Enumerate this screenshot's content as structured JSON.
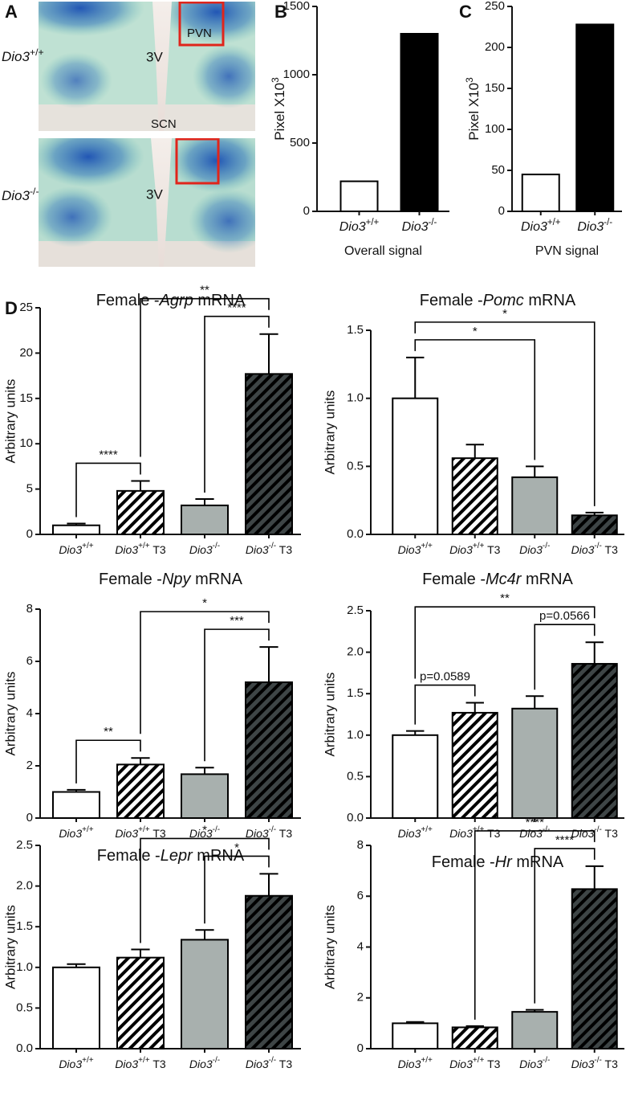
{
  "image_panel": {
    "panel": "A",
    "top": {
      "genotype": "Dio3+/+",
      "region_box": "PVN",
      "ventricle": "3V",
      "nucleus": "SCN"
    },
    "bottom": {
      "genotype": "Dio3-/-",
      "ventricle": "3V"
    }
  },
  "chart_data": [
    {
      "type": "bar",
      "panel": "B",
      "ylabel": "Pixel X103",
      "xlabel": "Overall signal",
      "categories": [
        "Dio3+/+",
        "Dio3-/-"
      ],
      "values": [
        220,
        1300
      ],
      "colors": [
        "#ffffff",
        "#000000"
      ],
      "hatch": [
        false,
        false
      ],
      "ylim": [
        0,
        1500
      ],
      "yticks": [
        0,
        500,
        1000,
        1500
      ]
    },
    {
      "type": "bar",
      "panel": "C",
      "ylabel": "Pixel X103",
      "xlabel": "PVN signal",
      "categories": [
        "Dio3+/+",
        "Dio3-/-"
      ],
      "values": [
        45,
        228
      ],
      "colors": [
        "#ffffff",
        "#000000"
      ],
      "hatch": [
        false,
        false
      ],
      "ylim": [
        0,
        250
      ],
      "yticks": [
        0,
        50,
        100,
        150,
        200,
        250
      ]
    },
    {
      "type": "bar",
      "panel": "D",
      "title": "Female -Agrp mRNA",
      "ylabel": "Arbitrary units",
      "categories": [
        "Dio3+/+",
        "Dio3+/+ T3",
        "Dio3-/-",
        "Dio3-/- T3"
      ],
      "values": [
        1.0,
        4.8,
        3.2,
        17.7
      ],
      "errors": [
        0.2,
        1.1,
        0.7,
        4.4
      ],
      "colors": [
        "#ffffff",
        "#ffffff",
        "#a8b0ae",
        "#3e4546"
      ],
      "hatch": [
        false,
        true,
        false,
        true
      ],
      "ylim": [
        0,
        25
      ],
      "yticks": [
        0,
        5,
        10,
        15,
        20,
        25
      ],
      "annotations": [
        {
          "text": "****",
          "from": "Dio3+/+",
          "to": "Dio3+/+ T3"
        },
        {
          "text": "****",
          "from": "Dio3-/-",
          "to": "Dio3-/- T3"
        },
        {
          "text": "**",
          "from": "Dio3+/+ T3",
          "to": "Dio3-/- T3"
        }
      ]
    },
    {
      "type": "bar",
      "title": "Female -Pomc mRNA",
      "ylabel": "Arbitrary units",
      "categories": [
        "Dio3+/+",
        "Dio3+/+ T3",
        "Dio3-/-",
        "Dio3-/- T3"
      ],
      "values": [
        1.0,
        0.56,
        0.42,
        0.14
      ],
      "errors": [
        0.3,
        0.1,
        0.08,
        0.02
      ],
      "colors": [
        "#ffffff",
        "#ffffff",
        "#a8b0ae",
        "#3e4546"
      ],
      "hatch": [
        false,
        true,
        false,
        true
      ],
      "ylim": [
        0,
        1.5
      ],
      "yticks": [
        {
          "value": 0,
          "label": "0.0"
        },
        0.5,
        {
          "value": 1,
          "label": "1.0"
        },
        1.5
      ],
      "annotations": [
        {
          "text": "*",
          "from": "Dio3+/+",
          "to": "Dio3-/-"
        },
        {
          "text": "*",
          "from": "Dio3+/+",
          "to": "Dio3-/- T3"
        }
      ]
    },
    {
      "type": "bar",
      "title": "Female -Npy mRNA",
      "ylabel": "Arbitrary units",
      "categories": [
        "Dio3+/+",
        "Dio3+/+ T3",
        "Dio3-/-",
        "Dio3-/- T3"
      ],
      "values": [
        1.0,
        2.05,
        1.68,
        5.2
      ],
      "errors": [
        0.08,
        0.25,
        0.25,
        1.35
      ],
      "colors": [
        "#ffffff",
        "#ffffff",
        "#a8b0ae",
        "#3e4546"
      ],
      "hatch": [
        false,
        true,
        false,
        true
      ],
      "ylim": [
        0,
        8
      ],
      "yticks": [
        0,
        2,
        4,
        6,
        8
      ],
      "annotations": [
        {
          "text": "**",
          "from": "Dio3+/+",
          "to": "Dio3+/+ T3"
        },
        {
          "text": "***",
          "from": "Dio3-/-",
          "to": "Dio3-/- T3"
        },
        {
          "text": "*",
          "from": "Dio3+/+ T3",
          "to": "Dio3-/- T3"
        }
      ]
    },
    {
      "type": "bar",
      "title": "Female -Mc4r mRNA",
      "ylabel": "Arbitrary units",
      "categories": [
        "Dio3+/+",
        "Dio3+/+ T3",
        "Dio3-/-",
        "Dio3-/- T3"
      ],
      "values": [
        1.0,
        1.27,
        1.32,
        1.86
      ],
      "errors": [
        0.05,
        0.12,
        0.15,
        0.26
      ],
      "colors": [
        "#ffffff",
        "#ffffff",
        "#a8b0ae",
        "#3e4546"
      ],
      "hatch": [
        false,
        true,
        false,
        true
      ],
      "ylim": [
        0,
        2.5
      ],
      "yticks": [
        {
          "value": 0,
          "label": "0.0"
        },
        0.5,
        {
          "value": 1,
          "label": "1.0"
        },
        1.5,
        {
          "value": 2,
          "label": "2.0"
        },
        2.5
      ],
      "annotations": [
        {
          "text": "p=0.0589",
          "from": "Dio3+/+",
          "to": "Dio3+/+ T3"
        },
        {
          "text": "p=0.0566",
          "from": "Dio3-/-",
          "to": "Dio3-/- T3"
        },
        {
          "text": "**",
          "from": "Dio3+/+",
          "to": "Dio3-/- T3"
        }
      ]
    },
    {
      "type": "bar",
      "title": "Female -Lepr mRNA",
      "ylabel": "Arbitrary units",
      "categories": [
        "Dio3+/+",
        "Dio3+/+ T3",
        "Dio3-/-",
        "Dio3-/- T3"
      ],
      "values": [
        1.0,
        1.12,
        1.34,
        1.88
      ],
      "errors": [
        0.04,
        0.1,
        0.12,
        0.27
      ],
      "colors": [
        "#ffffff",
        "#ffffff",
        "#a8b0ae",
        "#3e4546"
      ],
      "hatch": [
        false,
        true,
        false,
        true
      ],
      "ylim": [
        0,
        2.5
      ],
      "yticks": [
        {
          "value": 0,
          "label": "0.0"
        },
        0.5,
        {
          "value": 1,
          "label": "1.0"
        },
        1.5,
        {
          "value": 2,
          "label": "2.0"
        },
        2.5
      ],
      "annotations": [
        {
          "text": "*",
          "from": "Dio3-/-",
          "to": "Dio3-/- T3"
        },
        {
          "text": "*",
          "from": "Dio3+/+ T3",
          "to": "Dio3-/- T3"
        }
      ]
    },
    {
      "type": "bar",
      "title": "Female -Hr mRNA",
      "ylabel": "Arbitrary units",
      "categories": [
        "Dio3+/+",
        "Dio3+/+ T3",
        "Dio3-/-",
        "Dio3-/- T3"
      ],
      "values": [
        1.0,
        0.84,
        1.45,
        6.28
      ],
      "errors": [
        0.05,
        0.05,
        0.08,
        0.9
      ],
      "colors": [
        "#ffffff",
        "#ffffff",
        "#a8b0ae",
        "#3e4546"
      ],
      "hatch": [
        false,
        true,
        false,
        true
      ],
      "ylim": [
        0,
        8
      ],
      "yticks": [
        0,
        2,
        4,
        6,
        8
      ],
      "annotations": [
        {
          "text": "****",
          "from": "Dio3-/-",
          "to": "Dio3-/- T3"
        },
        {
          "text": "****",
          "from": "Dio3+/+ T3",
          "to": "Dio3-/- T3"
        }
      ]
    }
  ]
}
